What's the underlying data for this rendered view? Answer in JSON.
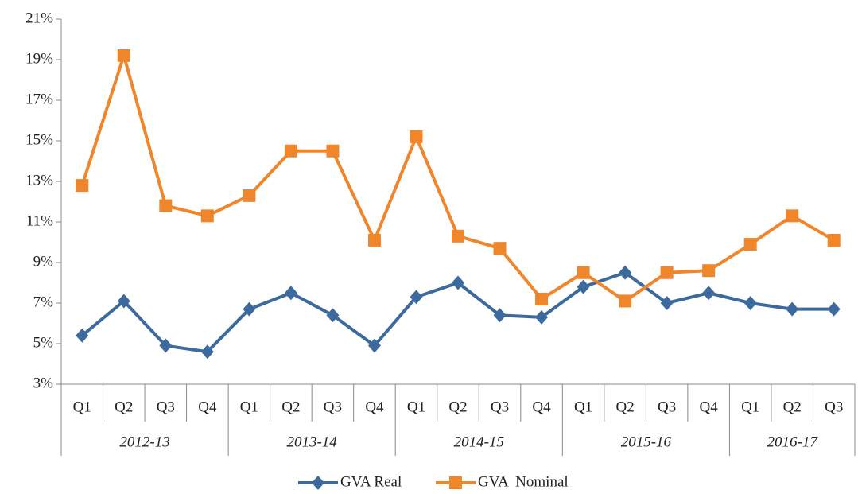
{
  "chart_data": {
    "type": "line",
    "groups": [
      {
        "name": "2012-13",
        "categories": [
          "Q1",
          "Q2",
          "Q3",
          "Q4"
        ]
      },
      {
        "name": "2013-14",
        "categories": [
          "Q1",
          "Q2",
          "Q3",
          "Q4"
        ]
      },
      {
        "name": "2014-15",
        "categories": [
          "Q1",
          "Q2",
          "Q3",
          "Q4"
        ]
      },
      {
        "name": "2015-16",
        "categories": [
          "Q1",
          "Q2",
          "Q3",
          "Q4"
        ]
      },
      {
        "name": "2016-17",
        "categories": [
          "Q1",
          "Q2",
          "Q3"
        ]
      }
    ],
    "series": [
      {
        "name": "GVA Real",
        "color": "#3d6a9e",
        "marker": "diamond",
        "values": [
          5.4,
          7.1,
          4.9,
          4.6,
          6.7,
          7.5,
          6.4,
          4.9,
          7.3,
          8.0,
          6.4,
          6.3,
          7.8,
          8.5,
          7.0,
          7.5,
          7.0,
          6.7,
          6.7
        ]
      },
      {
        "name": "GVA  Nominal",
        "color": "#f0862c",
        "marker": "square",
        "values": [
          12.8,
          19.2,
          11.8,
          11.3,
          12.3,
          14.5,
          14.5,
          10.1,
          15.2,
          10.3,
          9.7,
          7.2,
          8.5,
          7.1,
          8.5,
          8.6,
          9.9,
          11.3,
          10.1
        ]
      }
    ],
    "ylim": [
      3,
      21
    ],
    "yticks": [
      {
        "value": 3,
        "label": "3%"
      },
      {
        "value": 5,
        "label": "5%"
      },
      {
        "value": 7,
        "label": "7%"
      },
      {
        "value": 9,
        "label": "9%"
      },
      {
        "value": 11,
        "label": "11%"
      },
      {
        "value": 13,
        "label": "13%"
      },
      {
        "value": 15,
        "label": "15%"
      },
      {
        "value": 17,
        "label": "17%"
      },
      {
        "value": 19,
        "label": "19%"
      },
      {
        "value": 21,
        "label": "21%"
      }
    ],
    "legend": "bottom"
  }
}
